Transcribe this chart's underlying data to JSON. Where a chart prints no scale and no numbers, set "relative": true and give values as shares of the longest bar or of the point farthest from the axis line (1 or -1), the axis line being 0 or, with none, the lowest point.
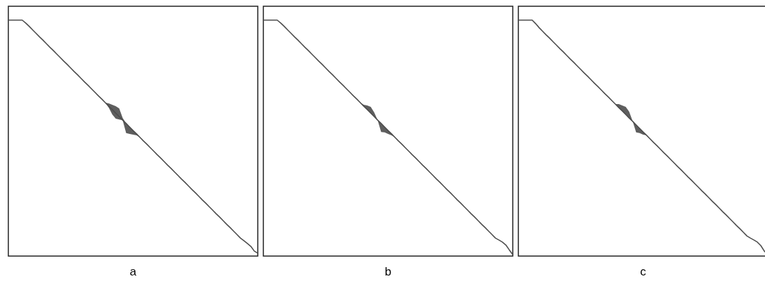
{
  "chart_data": [
    {
      "type": "line",
      "title": "a",
      "relative": true,
      "tick_labels": false,
      "categories": [
        null,
        null,
        null,
        null,
        null,
        null,
        null,
        null,
        null,
        null,
        null,
        null,
        null,
        null,
        null,
        null,
        null,
        null,
        null,
        null,
        null,
        null,
        null,
        null,
        null,
        null,
        null,
        null,
        null,
        null,
        null,
        null,
        null,
        null,
        null,
        null,
        null,
        null,
        null,
        null,
        null,
        null,
        null,
        null,
        null,
        null,
        null,
        null,
        null,
        null,
        null,
        null,
        null,
        null,
        null,
        null,
        null,
        null,
        null,
        null,
        null,
        null,
        null,
        null,
        null,
        null,
        null,
        null,
        null,
        null,
        null,
        null,
        null
      ],
      "series": [
        {
          "color": "#4d4d4d",
          "values": [
            1,
            1,
            1,
            1,
            1,
            0.988,
            0.974,
            0.959,
            0.944,
            0.929,
            0.915,
            0.9,
            0.885,
            0.871,
            0.856,
            0.841,
            0.826,
            0.812,
            0.797,
            0.782,
            0.768,
            0.753,
            0.738,
            0.724,
            0.709,
            0.694,
            0.679,
            0.665,
            0.65,
            0.635,
            0.621,
            0.606,
            0.591,
            0.576,
            0.562,
            0.547,
            0.532,
            0.518,
            0.503,
            0.488,
            0.474,
            0.459,
            0.444,
            0.429,
            0.415,
            0.4,
            0.385,
            0.371,
            0.356,
            0.341,
            0.326,
            0.312,
            0.297,
            0.282,
            0.268,
            0.253,
            0.238,
            0.224,
            0.209,
            0.194,
            0.179,
            0.165,
            0.15,
            0.135,
            0.121,
            0.106,
            0.091,
            0.076,
            0.065,
            0.053,
            0.041,
            0.021,
            0.012
          ],
          "upper": [
            null,
            null,
            null,
            null,
            null,
            null,
            null,
            null,
            null,
            null,
            null,
            null,
            null,
            null,
            null,
            null,
            null,
            null,
            null,
            null,
            null,
            null,
            null,
            null,
            null,
            null,
            null,
            null,
            0.65,
            0.647,
            0.641,
            0.635,
            0.626,
            0.585,
            0.562,
            0.547,
            0.532,
            0.518,
            0.503,
            null,
            null,
            null,
            null,
            null,
            null,
            null,
            null,
            null,
            null,
            null,
            null,
            null,
            null,
            null,
            null,
            null,
            null,
            null,
            null,
            null,
            null,
            null,
            null,
            null,
            null,
            null,
            null,
            null,
            null,
            null,
            null,
            null,
            null
          ],
          "lower": [
            null,
            null,
            null,
            null,
            null,
            null,
            null,
            null,
            null,
            null,
            null,
            null,
            null,
            null,
            null,
            null,
            null,
            null,
            null,
            null,
            null,
            null,
            null,
            null,
            null,
            null,
            null,
            null,
            0.65,
            0.629,
            0.6,
            0.582,
            0.579,
            0.576,
            0.521,
            0.518,
            0.515,
            0.512,
            0.503,
            null,
            null,
            null,
            null,
            null,
            null,
            null,
            null,
            null,
            null,
            null,
            null,
            null,
            null,
            null,
            null,
            null,
            null,
            null,
            null,
            null,
            null,
            null,
            null,
            null,
            null,
            null,
            null,
            null,
            null,
            null,
            null,
            null,
            null
          ]
        }
      ]
    },
    {
      "type": "line",
      "title": "b",
      "relative": true,
      "tick_labels": false,
      "categories": [
        null,
        null,
        null,
        null,
        null,
        null,
        null,
        null,
        null,
        null,
        null,
        null,
        null,
        null,
        null,
        null,
        null,
        null,
        null,
        null,
        null,
        null,
        null,
        null,
        null,
        null,
        null,
        null,
        null,
        null,
        null,
        null,
        null,
        null,
        null,
        null,
        null,
        null,
        null,
        null,
        null,
        null,
        null,
        null,
        null,
        null,
        null,
        null,
        null,
        null,
        null,
        null,
        null,
        null,
        null,
        null,
        null,
        null,
        null,
        null,
        null,
        null,
        null,
        null,
        null,
        null,
        null,
        null,
        null,
        null,
        null,
        null,
        null
      ],
      "series": [
        {
          "color": "#4d4d4d",
          "values": [
            1,
            1,
            1,
            1,
            1,
            0.988,
            0.974,
            0.959,
            0.944,
            0.929,
            0.915,
            0.9,
            0.885,
            0.871,
            0.856,
            0.841,
            0.826,
            0.812,
            0.797,
            0.782,
            0.768,
            0.753,
            0.738,
            0.724,
            0.709,
            0.694,
            0.679,
            0.665,
            0.65,
            0.635,
            0.621,
            0.606,
            0.591,
            0.576,
            0.562,
            0.547,
            0.532,
            0.518,
            0.503,
            0.488,
            0.474,
            0.459,
            0.444,
            0.429,
            0.415,
            0.4,
            0.385,
            0.371,
            0.356,
            0.341,
            0.326,
            0.312,
            0.297,
            0.282,
            0.268,
            0.253,
            0.238,
            0.224,
            0.209,
            0.194,
            0.179,
            0.165,
            0.15,
            0.135,
            0.121,
            0.106,
            0.091,
            0.076,
            0.068,
            0.059,
            0.047,
            0.026,
            0.006
          ],
          "upper": [
            null,
            null,
            null,
            null,
            null,
            null,
            null,
            null,
            null,
            null,
            null,
            null,
            null,
            null,
            null,
            null,
            null,
            null,
            null,
            null,
            null,
            null,
            null,
            null,
            null,
            null,
            null,
            null,
            0.65,
            0.641,
            0.638,
            0.632,
            0.609,
            0.576,
            0.562,
            0.547,
            0.532,
            0.518,
            0.503,
            null,
            null,
            null,
            null,
            null,
            null,
            null,
            null,
            null,
            null,
            null,
            null,
            null,
            null,
            null,
            null,
            null,
            null,
            null,
            null,
            null,
            null,
            null,
            null,
            null,
            null,
            null,
            null,
            null,
            null,
            null,
            null,
            null,
            null
          ],
          "lower": [
            null,
            null,
            null,
            null,
            null,
            null,
            null,
            null,
            null,
            null,
            null,
            null,
            null,
            null,
            null,
            null,
            null,
            null,
            null,
            null,
            null,
            null,
            null,
            null,
            null,
            null,
            null,
            null,
            0.65,
            0.635,
            0.621,
            0.606,
            0.591,
            0.576,
            0.526,
            0.524,
            0.518,
            0.512,
            0.503,
            null,
            null,
            null,
            null,
            null,
            null,
            null,
            null,
            null,
            null,
            null,
            null,
            null,
            null,
            null,
            null,
            null,
            null,
            null,
            null,
            null,
            null,
            null,
            null,
            null,
            null,
            null,
            null,
            null,
            null,
            null,
            null,
            null,
            null
          ]
        }
      ]
    },
    {
      "type": "line",
      "title": "c",
      "relative": true,
      "tick_labels": false,
      "categories": [
        null,
        null,
        null,
        null,
        null,
        null,
        null,
        null,
        null,
        null,
        null,
        null,
        null,
        null,
        null,
        null,
        null,
        null,
        null,
        null,
        null,
        null,
        null,
        null,
        null,
        null,
        null,
        null,
        null,
        null,
        null,
        null,
        null,
        null,
        null,
        null,
        null,
        null,
        null,
        null,
        null,
        null,
        null,
        null,
        null,
        null,
        null,
        null,
        null,
        null,
        null,
        null,
        null,
        null,
        null,
        null,
        null,
        null,
        null,
        null,
        null,
        null,
        null,
        null,
        null,
        null,
        null,
        null,
        null,
        null,
        null,
        null,
        null
      ],
      "series": [
        {
          "color": "#4d4d4d",
          "values": [
            1,
            1,
            1,
            1,
            1,
            0.985,
            0.968,
            0.953,
            0.938,
            0.924,
            0.909,
            0.894,
            0.879,
            0.865,
            0.85,
            0.835,
            0.821,
            0.806,
            0.791,
            0.776,
            0.762,
            0.747,
            0.732,
            0.718,
            0.703,
            0.688,
            0.674,
            0.659,
            0.644,
            0.629,
            0.615,
            0.6,
            0.585,
            0.571,
            0.556,
            0.541,
            0.526,
            0.512,
            0.497,
            0.482,
            0.468,
            0.453,
            0.438,
            0.424,
            0.409,
            0.394,
            0.379,
            0.365,
            0.35,
            0.335,
            0.321,
            0.306,
            0.291,
            0.276,
            0.262,
            0.247,
            0.232,
            0.218,
            0.203,
            0.188,
            0.174,
            0.159,
            0.144,
            0.129,
            0.115,
            0.1,
            0.085,
            0.076,
            0.068,
            0.059,
            0.044,
            0.021,
            0.006
          ],
          "upper": [
            null,
            null,
            null,
            null,
            null,
            null,
            null,
            null,
            null,
            null,
            null,
            null,
            null,
            null,
            null,
            null,
            null,
            null,
            null,
            null,
            null,
            null,
            null,
            null,
            null,
            null,
            null,
            null,
            0.644,
            0.644,
            0.638,
            0.632,
            0.612,
            0.571,
            0.556,
            0.541,
            0.526,
            0.512,
            0.497,
            null,
            null,
            null,
            null,
            null,
            null,
            null,
            null,
            null,
            null,
            null,
            null,
            null,
            null,
            null,
            null,
            null,
            null,
            null,
            null,
            null,
            null,
            null,
            null,
            null,
            null,
            null,
            null,
            null,
            null,
            null,
            null,
            null,
            null
          ],
          "lower": [
            null,
            null,
            null,
            null,
            null,
            null,
            null,
            null,
            null,
            null,
            null,
            null,
            null,
            null,
            null,
            null,
            null,
            null,
            null,
            null,
            null,
            null,
            null,
            null,
            null,
            null,
            null,
            null,
            0.644,
            0.629,
            0.615,
            0.6,
            0.585,
            0.571,
            0.524,
            0.521,
            0.515,
            0.512,
            0.497,
            null,
            null,
            null,
            null,
            null,
            null,
            null,
            null,
            null,
            null,
            null,
            null,
            null,
            null,
            null,
            null,
            null,
            null,
            null,
            null,
            null,
            null,
            null,
            null,
            null,
            null,
            null,
            null,
            null,
            null,
            null,
            null,
            null,
            null
          ]
        }
      ]
    }
  ]
}
